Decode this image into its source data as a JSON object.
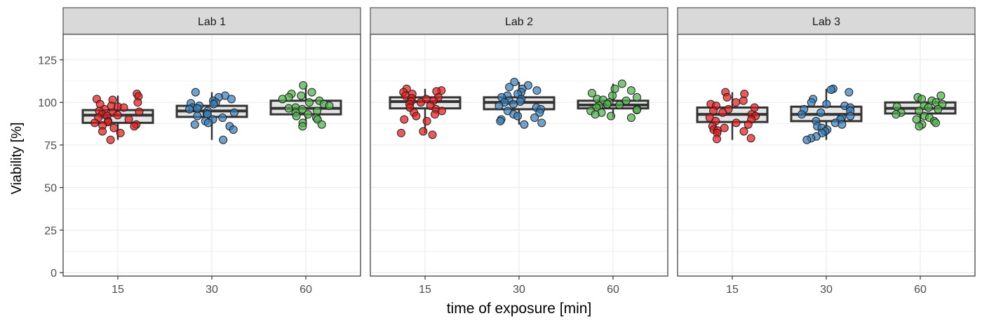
{
  "chart_data": {
    "type": "boxplot-jitter",
    "xlabel": "time of exposure [min]",
    "ylabel": "Viability [%]",
    "ylim": [
      -2,
      140
    ],
    "yticks": [
      0,
      25,
      50,
      75,
      100,
      125
    ],
    "categories": [
      "15",
      "30",
      "60"
    ],
    "grid": true,
    "colors": {
      "15": "#e41a1c",
      "30": "#377eb8",
      "60": "#4daf4a"
    },
    "panels": [
      {
        "title": "Lab 1",
        "boxes": [
          {
            "category": "15",
            "lower_whisker": 78,
            "q1": 88,
            "median": 92.5,
            "q3": 95.5,
            "upper_whisker": 104
          },
          {
            "category": "30",
            "lower_whisker": 78,
            "q1": 91.5,
            "median": 95,
            "q3": 98,
            "upper_whisker": 106
          },
          {
            "category": "60",
            "lower_whisker": 86,
            "q1": 93,
            "median": 96.5,
            "q3": 101,
            "upper_whisker": 110
          }
        ],
        "points": {
          "15": [
            105,
            103.5,
            102,
            101.5,
            100,
            99,
            98,
            97.5,
            97,
            96,
            95,
            94.5,
            94,
            93,
            92.5,
            92,
            91,
            90,
            89,
            88.5,
            88,
            87,
            86.5,
            86,
            85,
            83,
            82,
            78
          ],
          "30": [
            106,
            104,
            103,
            102,
            101,
            100,
            99.5,
            99,
            98,
            97,
            96.5,
            96,
            95,
            94,
            93.5,
            93,
            92,
            91,
            90,
            89,
            88,
            87,
            86,
            84,
            78
          ],
          "60": [
            110,
            106,
            105,
            104,
            103,
            102,
            101,
            100,
            99,
            98,
            97,
            96.5,
            96,
            95,
            94,
            93,
            92,
            91,
            90,
            88,
            87,
            86
          ]
        }
      },
      {
        "title": "Lab 2",
        "boxes": [
          {
            "category": "15",
            "lower_whisker": 82,
            "q1": 96.5,
            "median": 100.5,
            "q3": 103,
            "upper_whisker": 108
          },
          {
            "category": "30",
            "lower_whisker": 87,
            "q1": 96,
            "median": 100,
            "q3": 103,
            "upper_whisker": 112
          },
          {
            "category": "60",
            "lower_whisker": 91,
            "q1": 96.5,
            "median": 98.5,
            "q3": 101,
            "upper_whisker": 111
          }
        ],
        "points": {
          "15": [
            108,
            107,
            106.5,
            106,
            105,
            104,
            103,
            102.5,
            102,
            101,
            100.5,
            100,
            99,
            98,
            97,
            96,
            95,
            94,
            93,
            92,
            90,
            89,
            83,
            82,
            81
          ],
          "30": [
            112,
            110,
            109,
            108,
            107,
            106,
            105,
            104,
            103,
            102,
            101,
            100.5,
            100,
            99,
            98,
            97,
            96,
            95,
            94,
            93,
            92,
            91,
            90,
            89,
            88,
            87
          ],
          "60": [
            111,
            108,
            107,
            105.5,
            104,
            103,
            102,
            101.5,
            101,
            100,
            99,
            98.5,
            98,
            97,
            96,
            95.5,
            95,
            94,
            93,
            92,
            91
          ]
        }
      },
      {
        "title": "Lab 3",
        "boxes": [
          {
            "category": "15",
            "lower_whisker": 78,
            "q1": 88.5,
            "median": 93,
            "q3": 97,
            "upper_whisker": 106
          },
          {
            "category": "30",
            "lower_whisker": 78,
            "q1": 89,
            "median": 93,
            "q3": 97.5,
            "upper_whisker": 108
          },
          {
            "category": "60",
            "lower_whisker": 87,
            "q1": 93.5,
            "median": 96.5,
            "q3": 100,
            "upper_whisker": 104
          }
        ],
        "points": {
          "15": [
            106,
            105,
            103,
            101,
            100,
            99,
            98,
            97,
            96,
            95,
            94,
            93,
            92,
            91,
            90,
            89,
            88,
            87,
            86,
            85,
            84,
            83.5,
            83,
            82,
            79,
            78.5
          ],
          "30": [
            108,
            107.5,
            106,
            102,
            100,
            99,
            98,
            97,
            96,
            95,
            94,
            93,
            92,
            91,
            90,
            89,
            88,
            87,
            86,
            85,
            84,
            83,
            82,
            80,
            79,
            78
          ],
          "60": [
            104,
            103,
            102,
            101,
            100,
            99,
            98,
            97.5,
            97,
            96,
            95,
            94,
            93,
            92,
            91,
            90,
            89,
            88,
            87,
            86
          ]
        }
      }
    ]
  }
}
